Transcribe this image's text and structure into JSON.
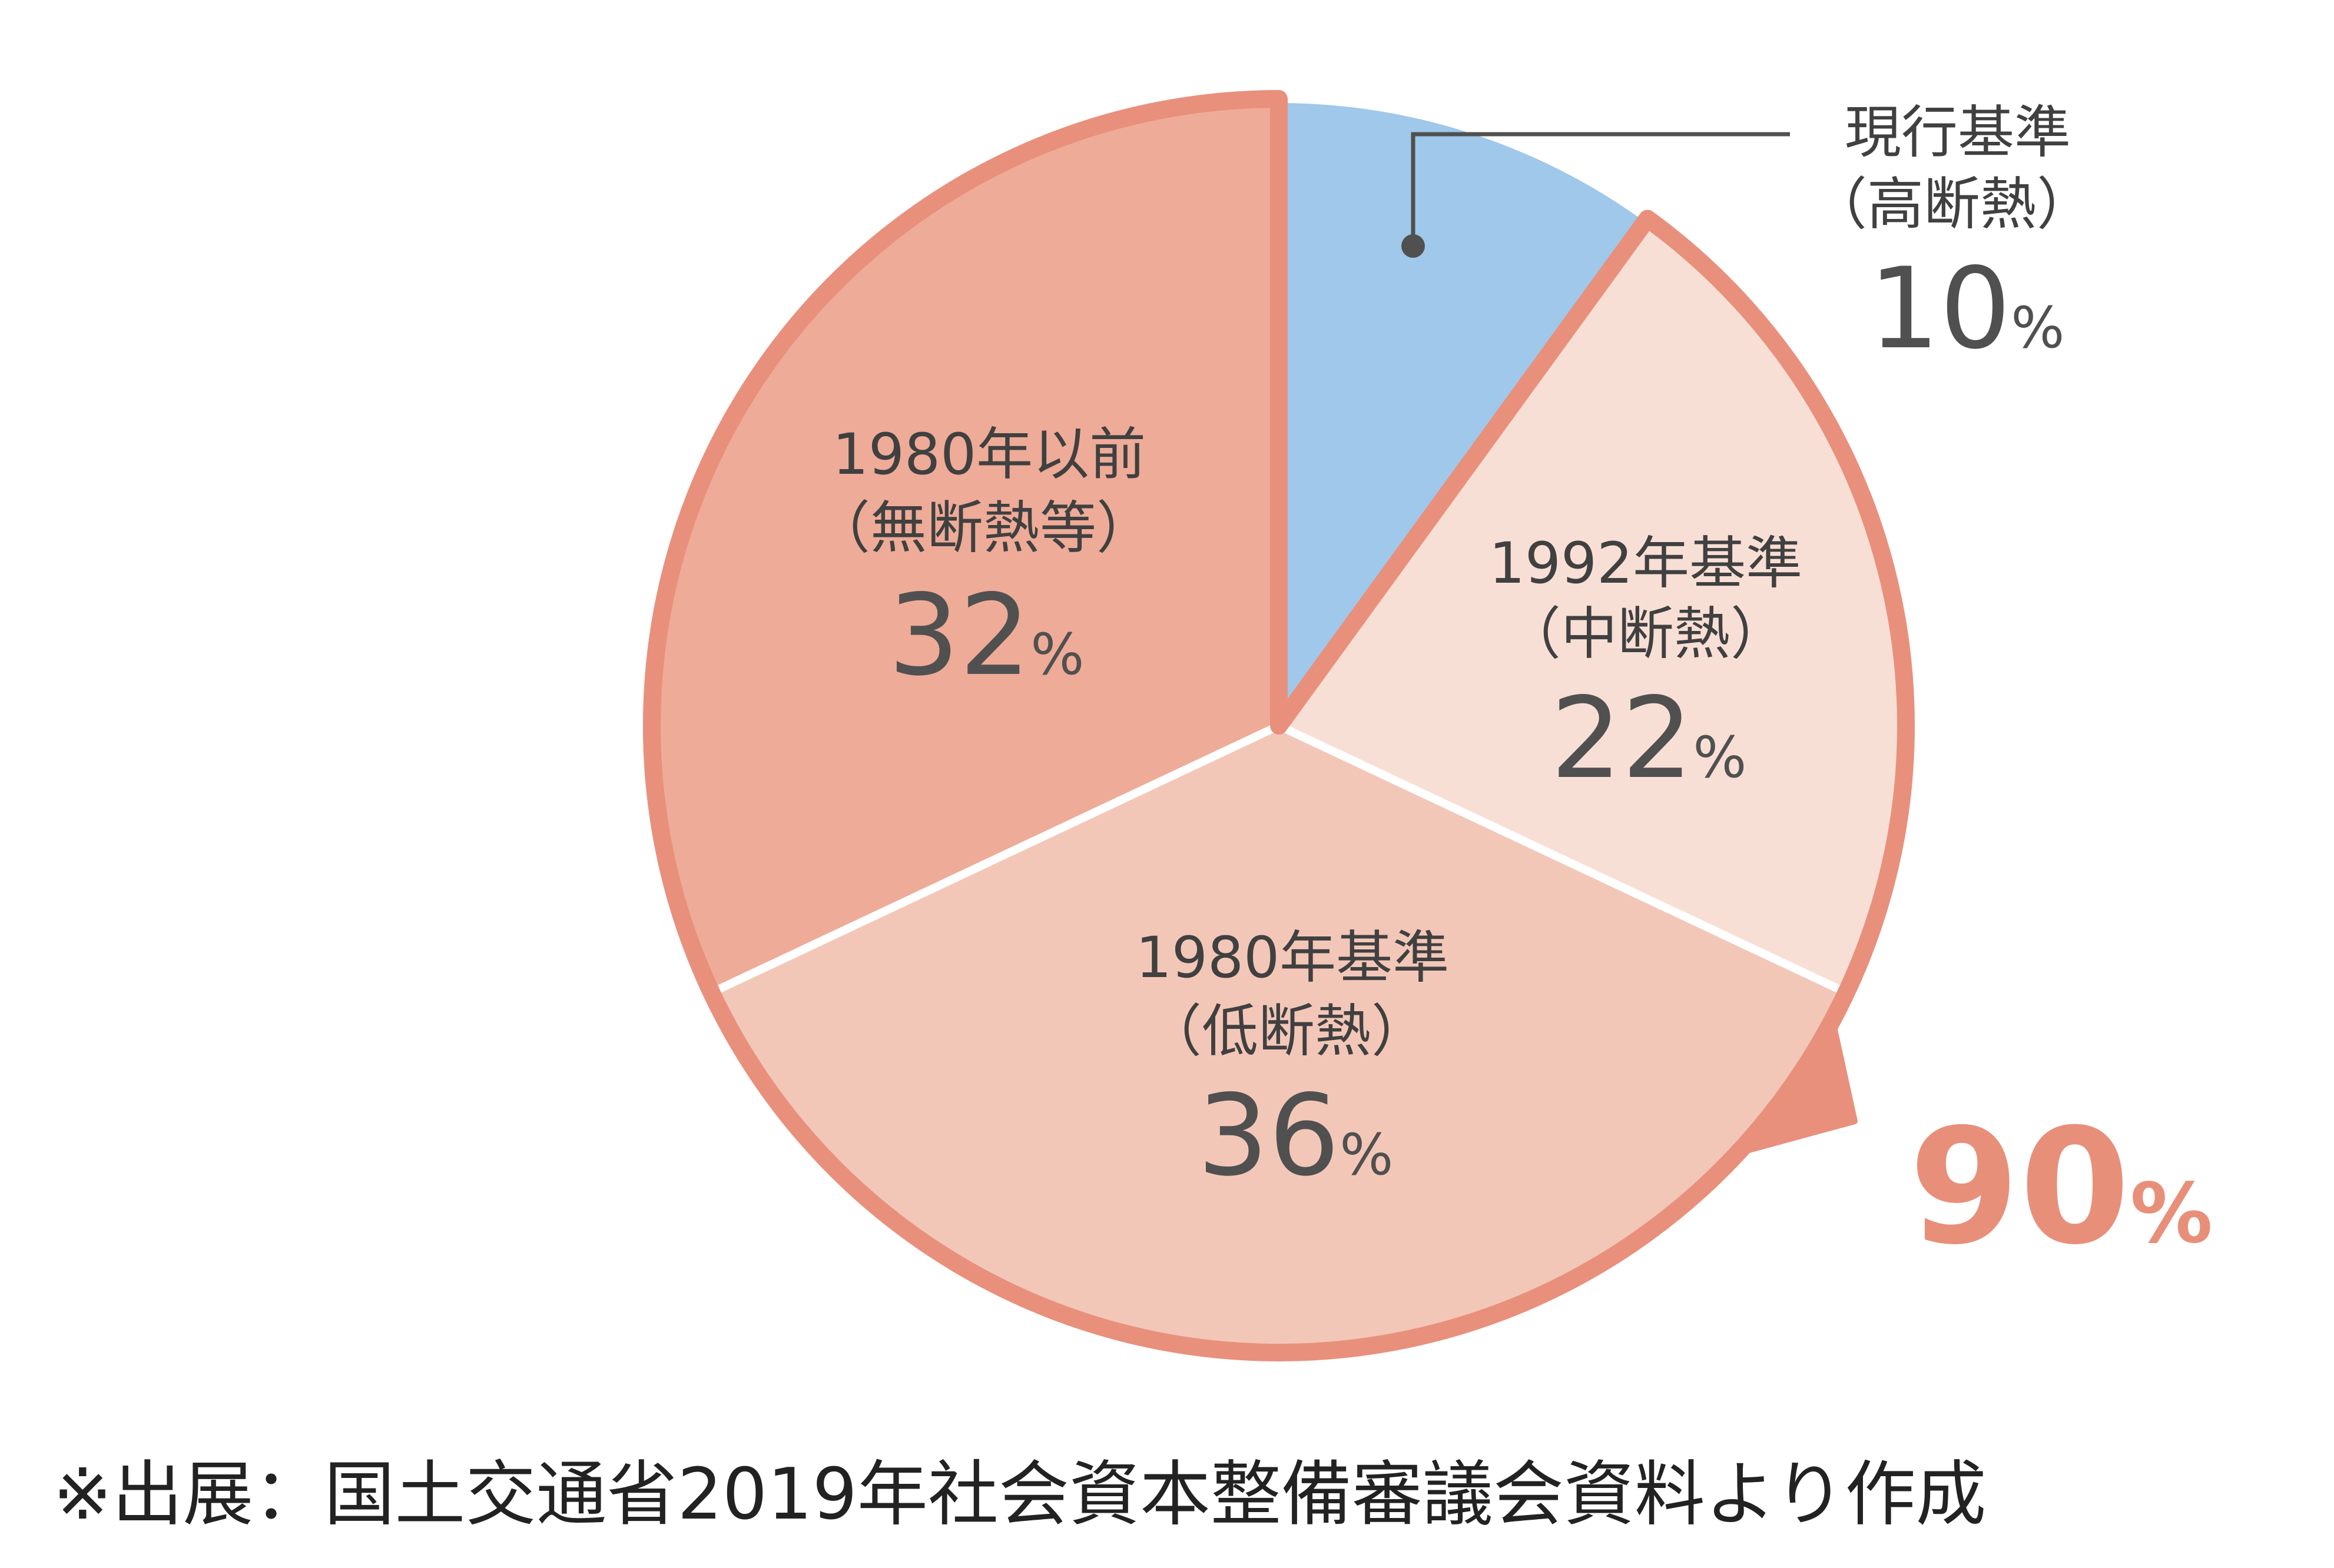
{
  "chart_data": {
    "type": "pie",
    "slices": [
      {
        "label_line1": "現行基準",
        "label_line2": "（高断熱）",
        "value": 10,
        "unit": "%"
      },
      {
        "label_line1": "1992年基準",
        "label_line2": "（中断熱）",
        "value": 22,
        "unit": "%"
      },
      {
        "label_line1": "1980年基準",
        "label_line2": "（低断熱）",
        "value": 36,
        "unit": "%"
      },
      {
        "label_line1": "1980年以前",
        "label_line2": "（無断熱等）",
        "value": 32,
        "unit": "%"
      }
    ],
    "combined_callout": {
      "value": 90,
      "unit": "%"
    }
  },
  "colors": {
    "slice_0": "#9fc8ea",
    "slice_1": "#f8dfd5",
    "slice_2": "#f3c7b8",
    "slice_3": "#eeab98",
    "outline": "#e8907c",
    "callout_text": "#e88f7a",
    "label_text": "#404040",
    "leader_line": "#505050"
  },
  "source_note": "※出展：国土交通省2019年社会資本整備審議会資料より作成"
}
